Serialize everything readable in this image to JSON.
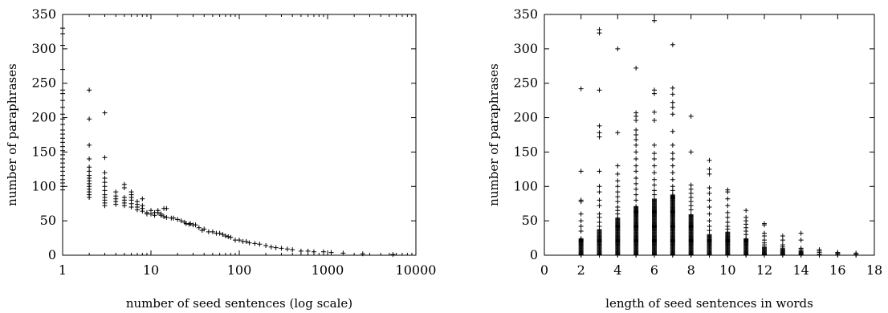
{
  "chart_data": [
    {
      "type": "scatter",
      "xlabel": "number of seed sentences (log scale)",
      "ylabel": "number of paraphrases",
      "xscale": "log",
      "xlim": [
        1,
        10000
      ],
      "ylim": [
        0,
        350
      ],
      "xticks": [
        1,
        10,
        100,
        1000,
        10000
      ],
      "xtick_labels": [
        "1",
        "10",
        "100",
        "1000",
        "10000"
      ],
      "yticks": [
        0,
        50,
        100,
        150,
        200,
        250,
        300,
        350
      ],
      "ytick_labels": [
        "0",
        "50",
        "100",
        "150",
        "200",
        "250",
        "300",
        "350"
      ],
      "grid": false,
      "marker": "+",
      "points": [
        [
          1,
          330
        ],
        [
          1,
          322
        ],
        [
          1,
          305
        ],
        [
          1,
          270
        ],
        [
          1,
          240
        ],
        [
          1,
          235
        ],
        [
          1,
          225
        ],
        [
          1,
          215
        ],
        [
          1,
          205
        ],
        [
          1,
          198
        ],
        [
          1,
          190
        ],
        [
          1,
          182
        ],
        [
          1,
          176
        ],
        [
          1,
          170
        ],
        [
          1,
          164
        ],
        [
          1,
          158
        ],
        [
          1,
          152
        ],
        [
          1,
          146
        ],
        [
          1,
          140
        ],
        [
          1,
          134
        ],
        [
          1,
          128
        ],
        [
          1,
          122
        ],
        [
          1,
          116
        ],
        [
          1,
          110
        ],
        [
          1,
          105
        ],
        [
          1,
          100
        ],
        [
          1,
          95
        ],
        [
          2,
          240
        ],
        [
          2,
          198
        ],
        [
          2,
          160
        ],
        [
          2,
          140
        ],
        [
          2,
          128
        ],
        [
          2,
          122
        ],
        [
          2,
          116
        ],
        [
          2,
          112
        ],
        [
          2,
          108
        ],
        [
          2,
          104
        ],
        [
          2,
          100
        ],
        [
          2,
          96
        ],
        [
          2,
          92
        ],
        [
          2,
          88
        ],
        [
          2,
          84
        ],
        [
          3,
          207
        ],
        [
          3,
          142
        ],
        [
          3,
          120
        ],
        [
          3,
          112
        ],
        [
          3,
          106
        ],
        [
          3,
          100
        ],
        [
          3,
          94
        ],
        [
          3,
          88
        ],
        [
          3,
          84
        ],
        [
          3,
          80
        ],
        [
          3,
          76
        ],
        [
          3,
          72
        ],
        [
          4,
          92
        ],
        [
          4,
          86
        ],
        [
          4,
          82
        ],
        [
          4,
          78
        ],
        [
          4,
          74
        ],
        [
          5,
          103
        ],
        [
          5,
          98
        ],
        [
          5,
          84
        ],
        [
          5,
          80
        ],
        [
          5,
          76
        ],
        [
          5,
          72
        ],
        [
          6,
          92
        ],
        [
          6,
          88
        ],
        [
          6,
          84
        ],
        [
          6,
          80
        ],
        [
          6,
          75
        ],
        [
          6,
          70
        ],
        [
          7,
          78
        ],
        [
          7,
          74
        ],
        [
          7,
          70
        ],
        [
          7,
          66
        ],
        [
          8,
          82
        ],
        [
          8,
          72
        ],
        [
          8,
          68
        ],
        [
          8,
          64
        ],
        [
          9,
          62
        ],
        [
          9,
          60
        ],
        [
          10,
          65
        ],
        [
          10,
          60
        ],
        [
          11,
          62
        ],
        [
          11,
          58
        ],
        [
          12,
          65
        ],
        [
          12,
          62
        ],
        [
          13,
          60
        ],
        [
          13,
          58
        ],
        [
          14,
          68
        ],
        [
          14,
          56
        ],
        [
          15,
          68
        ],
        [
          15,
          55
        ],
        [
          17,
          54
        ],
        [
          18,
          54
        ],
        [
          20,
          52
        ],
        [
          22,
          50
        ],
        [
          24,
          48
        ],
        [
          25,
          46
        ],
        [
          27,
          45
        ],
        [
          28,
          46
        ],
        [
          30,
          44
        ],
        [
          32,
          44
        ],
        [
          35,
          40
        ],
        [
          38,
          36
        ],
        [
          40,
          38
        ],
        [
          45,
          34
        ],
        [
          50,
          34
        ],
        [
          55,
          32
        ],
        [
          60,
          32
        ],
        [
          65,
          30
        ],
        [
          70,
          28
        ],
        [
          75,
          27
        ],
        [
          80,
          26
        ],
        [
          90,
          22
        ],
        [
          100,
          22
        ],
        [
          110,
          20
        ],
        [
          120,
          20
        ],
        [
          130,
          18
        ],
        [
          150,
          17
        ],
        [
          170,
          16
        ],
        [
          200,
          14
        ],
        [
          230,
          12
        ],
        [
          260,
          11
        ],
        [
          300,
          10
        ],
        [
          350,
          9
        ],
        [
          400,
          8
        ],
        [
          500,
          6
        ],
        [
          600,
          6
        ],
        [
          700,
          5
        ],
        [
          900,
          5
        ],
        [
          1100,
          4
        ],
        [
          1500,
          3
        ],
        [
          2500,
          2
        ],
        [
          5500,
          1
        ]
      ]
    },
    {
      "type": "scatter",
      "xlabel": "length of seed sentences in words",
      "ylabel": "number of paraphrases",
      "xlim": [
        0,
        18
      ],
      "ylim": [
        0,
        350
      ],
      "xticks": [
        0,
        2,
        4,
        6,
        8,
        10,
        12,
        14,
        16,
        18
      ],
      "xtick_labels": [
        "0",
        "2",
        "4",
        "6",
        "8",
        "10",
        "12",
        "14",
        "16",
        "18"
      ],
      "yticks": [
        0,
        50,
        100,
        150,
        200,
        250,
        300,
        350
      ],
      "ytick_labels": [
        "0",
        "50",
        "100",
        "150",
        "200",
        "250",
        "300",
        "350"
      ],
      "grid": false,
      "marker": "+",
      "columns": [
        {
          "x": 2,
          "dense_max": 25,
          "outliers": [
            242,
            122,
            80,
            78,
            60,
            50,
            42,
            35
          ]
        },
        {
          "x": 3,
          "dense_max": 38,
          "outliers": [
            328,
            323,
            240,
            188,
            178,
            172,
            122,
            100,
            92,
            80,
            72,
            60,
            55,
            48,
            42
          ]
        },
        {
          "x": 4,
          "dense_max": 55,
          "outliers": [
            300,
            178,
            130,
            118,
            108,
            100,
            92,
            85,
            78,
            70,
            65,
            60
          ]
        },
        {
          "x": 5,
          "dense_max": 72,
          "outliers": [
            272,
            207,
            202,
            196,
            182,
            175,
            168,
            160,
            150,
            140,
            130,
            122,
            112,
            104,
            96,
            88,
            80
          ]
        },
        {
          "x": 6,
          "dense_max": 82,
          "outliers": [
            341,
            240,
            235,
            208,
            196,
            160,
            148,
            140,
            130,
            120,
            110,
            102,
            94,
            88
          ]
        },
        {
          "x": 7,
          "dense_max": 88,
          "outliers": [
            306,
            243,
            234,
            222,
            215,
            205,
            180,
            160,
            148,
            140,
            130,
            120,
            110,
            100,
            94
          ]
        },
        {
          "x": 8,
          "dense_max": 60,
          "outliers": [
            202,
            150,
            102,
            96,
            90,
            84,
            78,
            72,
            66
          ]
        },
        {
          "x": 9,
          "dense_max": 30,
          "outliers": [
            138,
            125,
            118,
            98,
            90,
            80,
            70,
            60,
            50,
            42,
            36
          ]
        },
        {
          "x": 10,
          "dense_max": 34,
          "outliers": [
            95,
            92,
            82,
            72,
            62,
            55,
            48,
            42,
            38
          ]
        },
        {
          "x": 11,
          "dense_max": 25,
          "outliers": [
            65,
            55,
            50,
            45,
            40,
            35,
            30
          ]
        },
        {
          "x": 12,
          "dense_max": 13,
          "outliers": [
            46,
            44,
            32,
            28,
            22,
            18,
            15
          ]
        },
        {
          "x": 13,
          "dense_max": 10,
          "outliers": [
            28,
            22,
            15,
            12
          ]
        },
        {
          "x": 14,
          "dense_max": 6,
          "outliers": [
            32,
            22,
            10,
            8
          ]
        },
        {
          "x": 15,
          "dense_max": 2,
          "outliers": [
            8,
            6,
            4
          ]
        },
        {
          "x": 16,
          "dense_max": 2,
          "outliers": [
            4,
            3
          ]
        },
        {
          "x": 17,
          "dense_max": 2,
          "outliers": [
            3
          ]
        }
      ]
    }
  ]
}
